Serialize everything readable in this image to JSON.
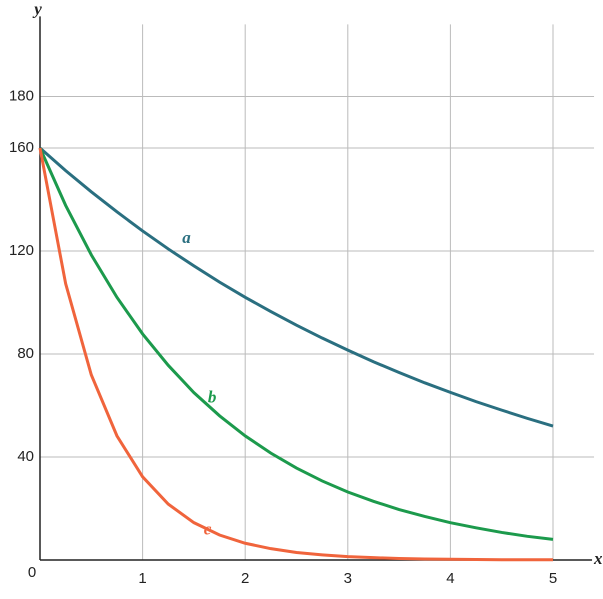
{
  "chart_data": {
    "type": "line",
    "x_label": "x",
    "y_label": "y",
    "x": [
      0,
      0.25,
      0.5,
      0.75,
      1,
      1.25,
      1.5,
      1.75,
      2,
      2.25,
      2.5,
      2.75,
      3,
      3.25,
      3.5,
      3.75,
      4,
      4.25,
      4.5,
      4.75,
      5
    ],
    "series": [
      {
        "name": "a",
        "color": "#2a6f80",
        "values": [
          160,
          151.2,
          143.0,
          135.2,
          127.8,
          120.8,
          114.2,
          107.9,
          102.0,
          96.5,
          91.2,
          86.2,
          81.5,
          77.0,
          72.8,
          68.8,
          65.1,
          61.5,
          58.2,
          55.0,
          52.0
        ]
      },
      {
        "name": "b",
        "color": "#1c9a4c",
        "values": [
          160,
          137.7,
          118.5,
          102.0,
          87.8,
          75.6,
          65.0,
          56.0,
          48.2,
          41.5,
          35.7,
          30.7,
          26.4,
          22.8,
          19.6,
          16.9,
          14.5,
          12.5,
          10.7,
          9.2,
          8.0
        ]
      },
      {
        "name": "c",
        "color": "#f0643c",
        "values": [
          160,
          107.3,
          71.9,
          48.2,
          32.3,
          21.7,
          14.5,
          9.7,
          6.5,
          4.4,
          2.9,
          2.0,
          1.3,
          0.9,
          0.6,
          0.4,
          0.3,
          0.2,
          0.1,
          0.1,
          0.1
        ]
      }
    ],
    "xlim": [
      0,
      5.4
    ],
    "ylim": [
      0,
      208
    ],
    "xticks": [
      0,
      1,
      2,
      3,
      4,
      5
    ],
    "yticks": [
      40,
      80,
      120,
      160,
      180
    ],
    "grid": true
  }
}
